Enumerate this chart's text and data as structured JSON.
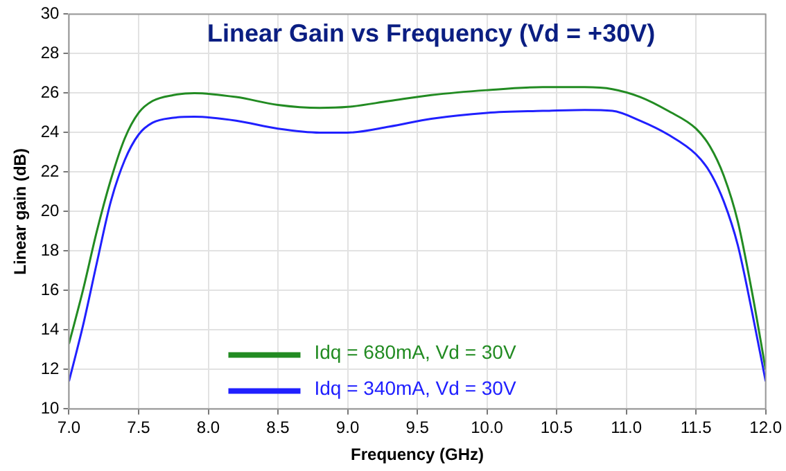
{
  "chart_data": {
    "type": "line",
    "title": "Linear Gain vs Frequency (Vd = +30V)",
    "xlabel": "Frequency (GHz)",
    "ylabel": "Linear gain (dB)",
    "x": [
      7.0,
      7.1,
      7.2,
      7.3,
      7.4,
      7.5,
      7.6,
      7.75,
      7.9,
      8.2,
      8.5,
      8.8,
      9.0,
      9.3,
      9.6,
      10.0,
      10.4,
      10.7,
      10.9,
      11.1,
      11.3,
      11.5,
      11.6,
      11.7,
      11.8,
      11.9,
      12.0
    ],
    "series": [
      {
        "name": "Idq = 680mA, Vd = 30V",
        "color": "#228b22",
        "values": [
          13.3,
          16,
          19,
          21.6,
          23.7,
          25,
          25.6,
          25.9,
          26.0,
          25.8,
          25.4,
          25.25,
          25.3,
          25.6,
          25.9,
          26.15,
          26.3,
          26.3,
          26.2,
          25.8,
          25.1,
          24.2,
          23.3,
          21.8,
          19.5,
          16,
          12
        ]
      },
      {
        "name": "Idq = 340mA, Vd = 30V",
        "color": "#2020ff",
        "values": [
          11.4,
          14.2,
          17.4,
          20.5,
          22.6,
          23.9,
          24.5,
          24.75,
          24.8,
          24.6,
          24.2,
          24.0,
          24.0,
          24.3,
          24.7,
          25.0,
          25.1,
          25.15,
          25.1,
          24.6,
          23.9,
          22.9,
          22.0,
          20.5,
          18.3,
          15,
          11.4
        ]
      }
    ],
    "xlim": [
      7.0,
      12.0
    ],
    "xticks": [
      {
        "value": 7,
        "label": "7.0"
      },
      7.5,
      {
        "value": 8,
        "label": "8.0"
      },
      8.5,
      {
        "value": 9,
        "label": "9.0"
      },
      9.5,
      {
        "value": 10,
        "label": "10.0"
      },
      10.5,
      {
        "value": 11,
        "label": "11.0"
      },
      11.5,
      {
        "value": 12,
        "label": "12.0"
      }
    ],
    "ylim": [
      10,
      30
    ],
    "yticks": [
      10,
      12,
      14,
      16,
      18,
      20,
      22,
      24,
      26,
      28,
      30
    ],
    "grid": true,
    "legend": "bottom",
    "marker": "none",
    "line_style": "solid"
  }
}
